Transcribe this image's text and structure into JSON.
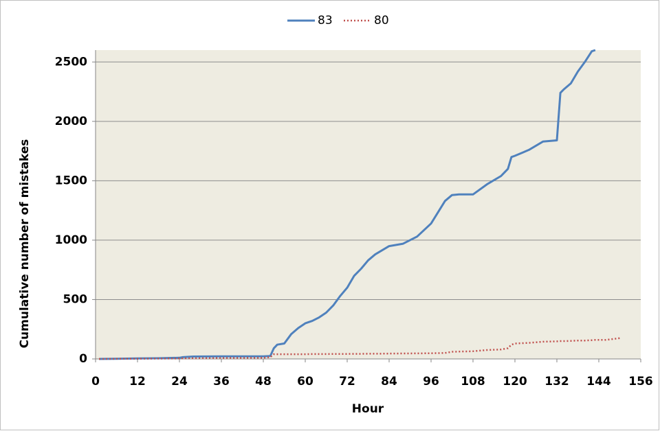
{
  "chart_data": {
    "type": "line",
    "x_label": "Hour",
    "y_label": "Cumulative number of mistakes",
    "x": [
      1,
      6,
      12,
      18,
      24,
      25,
      28,
      36,
      48,
      50,
      51,
      52,
      54,
      56,
      58,
      60,
      62,
      64,
      66,
      68,
      70,
      72,
      74,
      76,
      78,
      80,
      84,
      88,
      92,
      96,
      100,
      102,
      104,
      108,
      112,
      116,
      118,
      119,
      120,
      124,
      128,
      132,
      133,
      134,
      136,
      138,
      140,
      142,
      143,
      146,
      150
    ],
    "series": [
      {
        "name": "83",
        "color": "#4f81bd",
        "dash": "solid",
        "values": [
          0,
          2,
          4,
          6,
          10,
          15,
          20,
          22,
          22,
          25,
          90,
          120,
          130,
          210,
          260,
          300,
          320,
          350,
          390,
          450,
          530,
          600,
          700,
          760,
          830,
          880,
          950,
          970,
          1030,
          1140,
          1330,
          1380,
          1385,
          1385,
          1470,
          1540,
          1600,
          1700,
          1710,
          1760,
          1830,
          1840,
          2240,
          2270,
          2320,
          2420,
          2500,
          2590,
          2600,
          null,
          null
        ]
      },
      {
        "name": "80",
        "color": "#c0504d",
        "dash": "dotted",
        "values": [
          0,
          1,
          2,
          3,
          4,
          5,
          6,
          8,
          10,
          15,
          40,
          40,
          40,
          40,
          40,
          40,
          41,
          41,
          41,
          42,
          42,
          42,
          43,
          43,
          44,
          44,
          45,
          46,
          47,
          48,
          50,
          60,
          62,
          65,
          75,
          80,
          90,
          120,
          130,
          135,
          145,
          148,
          150,
          150,
          152,
          155,
          155,
          158,
          160,
          160,
          175
        ]
      }
    ],
    "xlim": [
      0,
      156
    ],
    "xticks": [
      0,
      12,
      24,
      36,
      48,
      60,
      72,
      84,
      96,
      108,
      120,
      132,
      144,
      156
    ],
    "ylim": [
      0,
      2600
    ],
    "yticks": [
      0,
      500,
      1000,
      1500,
      2000,
      2500
    ],
    "grid": true,
    "legend": "top",
    "plot_background": "#eeece1"
  }
}
